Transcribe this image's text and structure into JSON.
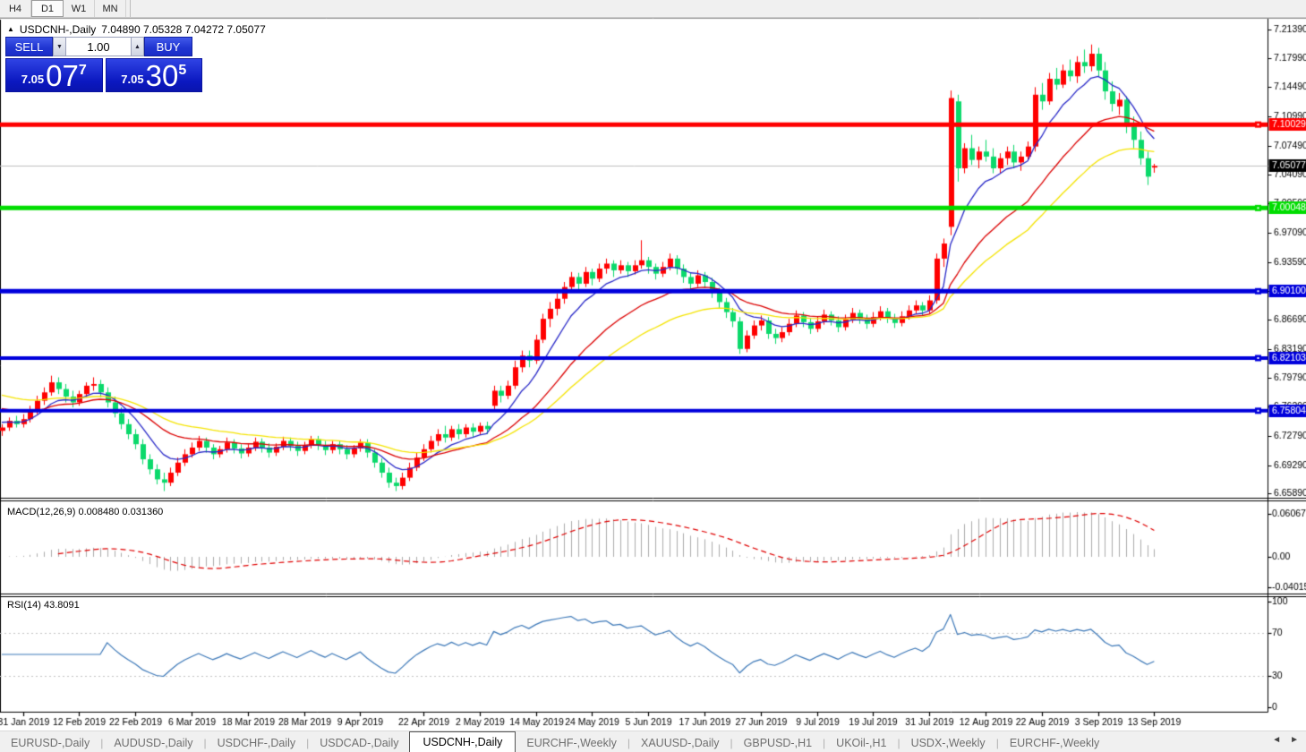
{
  "toolbar": {
    "timeframes": [
      {
        "label": "H4",
        "active": false
      },
      {
        "label": "D1",
        "active": true
      },
      {
        "label": "W1",
        "active": false
      },
      {
        "label": "MN",
        "active": false
      }
    ]
  },
  "chart_title": {
    "collapse_icon": "▲",
    "symbol_period": "USDCNH-,Daily",
    "ohlc_text": "7.04890 7.05328 7.04272 7.05077",
    "open": "7.04890",
    "high": "7.05328",
    "low": "7.04272",
    "close": "7.05077"
  },
  "trade_panel": {
    "sell_label": "SELL",
    "buy_label": "BUY",
    "volume": "1.00",
    "spin_down_icon": "▼",
    "spin_up_icon": "▲",
    "sell_price_small": "7.05",
    "sell_price_big": "07",
    "sell_price_sup": "7",
    "buy_price_small": "7.05",
    "buy_price_big": "30",
    "buy_price_sup": "5"
  },
  "macd_panel": {
    "label": "MACD(12,26,9)",
    "values": "0.008480 0.031360",
    "axis_labels": [
      "0.060674",
      "0.00",
      "-0.040152"
    ],
    "histogram_color": "#ababab",
    "signal_color": "#e00000"
  },
  "rsi_panel": {
    "label": "RSI(14)",
    "value": "43.8091",
    "axis_labels": [
      "100",
      "70",
      "30",
      "0"
    ],
    "levels": [
      70,
      30
    ],
    "line_color": "#3c78b8"
  },
  "tabs": {
    "items": [
      {
        "label": "EURUSD-,Daily",
        "active": false
      },
      {
        "label": "AUDUSD-,Daily",
        "active": false
      },
      {
        "label": "USDCHF-,Daily",
        "active": false
      },
      {
        "label": "USDCAD-,Daily",
        "active": false
      },
      {
        "label": "USDCNH-,Daily",
        "active": true
      },
      {
        "label": "EURCHF-,Weekly",
        "active": false
      },
      {
        "label": "XAUUSD-,Daily",
        "active": false
      },
      {
        "label": "GBPUSD-,H1",
        "active": false
      },
      {
        "label": "UKOil-,H1",
        "active": false
      },
      {
        "label": "USDX-,Weekly",
        "active": false
      },
      {
        "label": "EURCHF-,Weekly",
        "active": false
      }
    ],
    "scroll_left_icon": "◄",
    "scroll_right_icon": "►"
  },
  "chart_data": {
    "type": "candlestick",
    "symbol": "USDCNH-",
    "timeframe": "Daily",
    "bull_color": "#ff0000",
    "bear_color": "#0bd96b",
    "current_price": 7.05077,
    "current_price_line_color": "#c0c0c0",
    "price_axis": {
      "top_price": 7.2257,
      "bottom_price": 6.654,
      "tick_labels": [
        "7.21390",
        "7.17990",
        "7.14490",
        "7.10990",
        "7.07490",
        "7.04090",
        "7.00590",
        "6.97090",
        "6.93590",
        "6.90090",
        "6.86690",
        "6.83190",
        "6.79790",
        "6.76290",
        "6.72790",
        "6.69290",
        "6.65890"
      ]
    },
    "horizontal_lines": [
      {
        "price": 7.10029,
        "label": "7.10029",
        "color": "#ff0000",
        "width": 5
      },
      {
        "price": 7.00048,
        "label": "7.00048",
        "color": "#00dd00",
        "width": 5
      },
      {
        "price": 6.901,
        "label": "6.90100",
        "color": "#0000dc",
        "width": 5
      },
      {
        "price": 6.82103,
        "label": "6.82103",
        "color": "#0000dc",
        "width": 4
      },
      {
        "price": 6.75804,
        "label": "6.75804",
        "color": "#0000dc",
        "width": 4
      }
    ],
    "moving_averages": [
      {
        "period": 8,
        "color": "#2828c8",
        "seed": 6.746
      },
      {
        "period": 21,
        "color": "#dc0000",
        "seed": 6.763
      },
      {
        "period": 34,
        "color": "#f5e400",
        "seed": 6.779
      }
    ],
    "date_axis": {
      "labels": [
        "31 Jan 2019",
        "12 Feb 2019",
        "22 Feb 2019",
        "6 Mar 2019",
        "18 Mar 2019",
        "28 Mar 2019",
        "9 Apr 2019",
        "22 Apr 2019",
        "2 May 2019",
        "14 May 2019",
        "24 May 2019",
        "5 Jun 2019",
        "17 Jun 2019",
        "27 Jun 2019",
        "9 Jul 2019",
        "19 Jul 2019",
        "31 Jul 2019",
        "12 Aug 2019",
        "22 Aug 2019",
        "3 Sep 2019",
        "13 Sep 2019"
      ],
      "tick_indices": [
        3,
        11,
        19,
        27,
        35,
        43,
        51,
        60,
        68,
        76,
        84,
        92,
        100,
        108,
        116,
        124,
        132,
        140,
        148,
        156,
        164
      ]
    },
    "candles_ohlc": [
      [
        6.734,
        6.742,
        6.728,
        6.738
      ],
      [
        6.738,
        6.75,
        6.734,
        6.746
      ],
      [
        6.746,
        6.752,
        6.738,
        6.742
      ],
      [
        6.742,
        6.754,
        6.738,
        6.748
      ],
      [
        6.748,
        6.764,
        6.744,
        6.758
      ],
      [
        6.758,
        6.776,
        6.754,
        6.77
      ],
      [
        6.77,
        6.786,
        6.765,
        6.78
      ],
      [
        6.78,
        6.8,
        6.776,
        6.792
      ],
      [
        6.792,
        6.798,
        6.778,
        6.784
      ],
      [
        6.784,
        6.79,
        6.768,
        6.775
      ],
      [
        6.775,
        6.782,
        6.762,
        6.768
      ],
      [
        6.768,
        6.782,
        6.764,
        6.778
      ],
      [
        6.778,
        6.792,
        6.774,
        6.788
      ],
      [
        6.788,
        6.798,
        6.782,
        6.79
      ],
      [
        6.79,
        6.795,
        6.774,
        6.78
      ],
      [
        6.78,
        6.786,
        6.762,
        6.768
      ],
      [
        6.768,
        6.775,
        6.75,
        6.755
      ],
      [
        6.755,
        6.762,
        6.736,
        6.742
      ],
      [
        6.742,
        6.748,
        6.724,
        6.73
      ],
      [
        6.73,
        6.736,
        6.712,
        6.718
      ],
      [
        6.718,
        6.724,
        6.694,
        6.7
      ],
      [
        6.7,
        6.706,
        6.682,
        6.688
      ],
      [
        6.688,
        6.694,
        6.67,
        6.676
      ],
      [
        6.676,
        6.684,
        6.662,
        6.672
      ],
      [
        6.672,
        6.69,
        6.668,
        6.684
      ],
      [
        6.684,
        6.702,
        6.68,
        6.696
      ],
      [
        6.696,
        6.712,
        6.692,
        6.706
      ],
      [
        6.706,
        6.72,
        6.702,
        6.714
      ],
      [
        6.714,
        6.728,
        6.71,
        6.722
      ],
      [
        6.722,
        6.726,
        6.708,
        6.714
      ],
      [
        6.714,
        6.718,
        6.7,
        6.706
      ],
      [
        6.706,
        6.716,
        6.702,
        6.712
      ],
      [
        6.712,
        6.726,
        6.708,
        6.72
      ],
      [
        6.72,
        6.724,
        6.707,
        6.713
      ],
      [
        6.713,
        6.718,
        6.701,
        6.707
      ],
      [
        6.707,
        6.718,
        6.703,
        6.714
      ],
      [
        6.714,
        6.726,
        6.71,
        6.721
      ],
      [
        6.721,
        6.725,
        6.708,
        6.714
      ],
      [
        6.714,
        6.719,
        6.702,
        6.708
      ],
      [
        6.708,
        6.719,
        6.704,
        6.715
      ],
      [
        6.715,
        6.727,
        6.711,
        6.722
      ],
      [
        6.722,
        6.726,
        6.71,
        6.716
      ],
      [
        6.716,
        6.721,
        6.704,
        6.71
      ],
      [
        6.71,
        6.721,
        6.706,
        6.717
      ],
      [
        6.717,
        6.728,
        6.713,
        6.724
      ],
      [
        6.724,
        6.728,
        6.711,
        6.717
      ],
      [
        6.717,
        6.722,
        6.705,
        6.711
      ],
      [
        6.711,
        6.722,
        6.707,
        6.718
      ],
      [
        6.718,
        6.722,
        6.706,
        6.712
      ],
      [
        6.712,
        6.717,
        6.7,
        6.706
      ],
      [
        6.706,
        6.717,
        6.702,
        6.713
      ],
      [
        6.713,
        6.724,
        6.709,
        6.72
      ],
      [
        6.72,
        6.724,
        6.702,
        6.708
      ],
      [
        6.708,
        6.712,
        6.69,
        6.696
      ],
      [
        6.696,
        6.701,
        6.678,
        6.684
      ],
      [
        6.684,
        6.69,
        6.666,
        6.672
      ],
      [
        6.672,
        6.678,
        6.662,
        6.668
      ],
      [
        6.668,
        6.684,
        6.664,
        6.678
      ],
      [
        6.678,
        6.696,
        6.674,
        6.69
      ],
      [
        6.69,
        6.708,
        6.686,
        6.702
      ],
      [
        6.702,
        6.718,
        6.698,
        6.712
      ],
      [
        6.712,
        6.728,
        6.708,
        6.722
      ],
      [
        6.722,
        6.736,
        6.716,
        6.73
      ],
      [
        6.73,
        6.74,
        6.72,
        6.726
      ],
      [
        6.726,
        6.74,
        6.722,
        6.736
      ],
      [
        6.736,
        6.742,
        6.724,
        6.73
      ],
      [
        6.73,
        6.742,
        6.726,
        6.738
      ],
      [
        6.738,
        6.743,
        6.727,
        6.733
      ],
      [
        6.733,
        6.744,
        6.729,
        6.74
      ],
      [
        6.74,
        6.745,
        6.73,
        6.736
      ],
      [
        6.764,
        6.788,
        6.76,
        6.782
      ],
      [
        6.782,
        6.788,
        6.768,
        6.776
      ],
      [
        6.776,
        6.794,
        6.772,
        6.788
      ],
      [
        6.788,
        6.818,
        6.784,
        6.81
      ],
      [
        6.81,
        6.83,
        6.804,
        6.824
      ],
      [
        6.824,
        6.83,
        6.81,
        6.818
      ],
      [
        6.818,
        6.849,
        6.814,
        6.843
      ],
      [
        6.843,
        6.874,
        6.839,
        6.868
      ],
      [
        6.868,
        6.888,
        6.858,
        6.88
      ],
      [
        6.88,
        6.898,
        6.872,
        6.892
      ],
      [
        6.892,
        6.912,
        6.886,
        6.906
      ],
      [
        6.906,
        6.924,
        6.9,
        6.918
      ],
      [
        6.918,
        6.923,
        6.902,
        6.91
      ],
      [
        6.91,
        6.93,
        6.906,
        6.924
      ],
      [
        6.924,
        6.928,
        6.908,
        6.916
      ],
      [
        6.916,
        6.934,
        6.912,
        6.928
      ],
      [
        6.928,
        6.94,
        6.922,
        6.934
      ],
      [
        6.934,
        6.938,
        6.918,
        6.926
      ],
      [
        6.926,
        6.938,
        6.922,
        6.932
      ],
      [
        6.932,
        6.936,
        6.918,
        6.925
      ],
      [
        6.925,
        6.938,
        6.921,
        6.932
      ],
      [
        6.932,
        6.962,
        6.928,
        6.938
      ],
      [
        6.938,
        6.942,
        6.922,
        6.93
      ],
      [
        6.93,
        6.934,
        6.915,
        6.922
      ],
      [
        6.922,
        6.936,
        6.918,
        6.93
      ],
      [
        6.93,
        6.946,
        6.926,
        6.94
      ],
      [
        6.94,
        6.944,
        6.921,
        6.928
      ],
      [
        6.928,
        6.933,
        6.911,
        6.918
      ],
      [
        6.918,
        6.923,
        6.903,
        6.91
      ],
      [
        6.91,
        6.926,
        6.906,
        6.92
      ],
      [
        6.92,
        6.924,
        6.905,
        6.912
      ],
      [
        6.912,
        6.917,
        6.893,
        6.9
      ],
      [
        6.9,
        6.905,
        6.881,
        6.888
      ],
      [
        6.888,
        6.893,
        6.869,
        6.876
      ],
      [
        6.876,
        6.881,
        6.858,
        6.865
      ],
      [
        6.865,
        6.87,
        6.826,
        6.832
      ],
      [
        6.832,
        6.854,
        6.828,
        6.848
      ],
      [
        6.848,
        6.866,
        6.844,
        6.86
      ],
      [
        6.86,
        6.872,
        6.854,
        6.866
      ],
      [
        6.866,
        6.87,
        6.844,
        6.85
      ],
      [
        6.85,
        6.856,
        6.838,
        6.845
      ],
      [
        6.845,
        6.858,
        6.84,
        6.852
      ],
      [
        6.852,
        6.868,
        6.848,
        6.862
      ],
      [
        6.862,
        6.878,
        6.858,
        6.872
      ],
      [
        6.872,
        6.876,
        6.858,
        6.864
      ],
      [
        6.864,
        6.869,
        6.85,
        6.856
      ],
      [
        6.856,
        6.871,
        6.852,
        6.865
      ],
      [
        6.865,
        6.879,
        6.861,
        6.873
      ],
      [
        6.873,
        6.877,
        6.86,
        6.866
      ],
      [
        6.866,
        6.871,
        6.852,
        6.858
      ],
      [
        6.858,
        6.873,
        6.854,
        6.867
      ],
      [
        6.867,
        6.881,
        6.863,
        6.875
      ],
      [
        6.875,
        6.879,
        6.862,
        6.868
      ],
      [
        6.868,
        6.873,
        6.856,
        6.862
      ],
      [
        6.862,
        6.876,
        6.858,
        6.87
      ],
      [
        6.87,
        6.883,
        6.866,
        6.877
      ],
      [
        6.877,
        6.881,
        6.863,
        6.869
      ],
      [
        6.869,
        6.874,
        6.857,
        6.863
      ],
      [
        6.863,
        6.877,
        6.859,
        6.871
      ],
      [
        6.871,
        6.884,
        6.867,
        6.878
      ],
      [
        6.878,
        6.89,
        6.874,
        6.884
      ],
      [
        6.884,
        6.888,
        6.872,
        6.878
      ],
      [
        6.878,
        6.896,
        6.874,
        6.89
      ],
      [
        6.89,
        6.946,
        6.886,
        6.94
      ],
      [
        6.94,
        6.964,
        6.93,
        6.958
      ],
      [
        6.978,
        7.141,
        6.968,
        7.132
      ],
      [
        7.128,
        7.136,
        7.032,
        7.048
      ],
      [
        7.048,
        7.078,
        7.042,
        7.072
      ],
      [
        7.072,
        7.088,
        7.052,
        7.058
      ],
      [
        7.058,
        7.074,
        7.048,
        7.068
      ],
      [
        7.068,
        7.082,
        7.056,
        7.062
      ],
      [
        7.062,
        7.072,
        7.042,
        7.048
      ],
      [
        7.048,
        7.066,
        7.042,
        7.06
      ],
      [
        7.06,
        7.074,
        7.052,
        7.068
      ],
      [
        7.068,
        7.076,
        7.048,
        7.055
      ],
      [
        7.055,
        7.068,
        7.045,
        7.062
      ],
      [
        7.062,
        7.08,
        7.058,
        7.074
      ],
      [
        7.074,
        7.145,
        7.068,
        7.136
      ],
      [
        7.136,
        7.15,
        7.118,
        7.128
      ],
      [
        7.128,
        7.162,
        7.124,
        7.155
      ],
      [
        7.155,
        7.168,
        7.142,
        7.148
      ],
      [
        7.148,
        7.172,
        7.144,
        7.165
      ],
      [
        7.165,
        7.178,
        7.152,
        7.158
      ],
      [
        7.158,
        7.182,
        7.15,
        7.175
      ],
      [
        7.175,
        7.19,
        7.162,
        7.17
      ],
      [
        7.17,
        7.196,
        7.164,
        7.185
      ],
      [
        7.185,
        7.192,
        7.158,
        7.165
      ],
      [
        7.165,
        7.175,
        7.13,
        7.14
      ],
      [
        7.14,
        7.152,
        7.116,
        7.125
      ],
      [
        7.122,
        7.138,
        7.112,
        7.13
      ],
      [
        7.13,
        7.134,
        7.09,
        7.098
      ],
      [
        7.098,
        7.11,
        7.072,
        7.082
      ],
      [
        7.082,
        7.092,
        7.052,
        7.06
      ],
      [
        7.06,
        7.068,
        7.028,
        7.038
      ],
      [
        7.0489,
        7.0533,
        7.0427,
        7.0508
      ]
    ]
  }
}
